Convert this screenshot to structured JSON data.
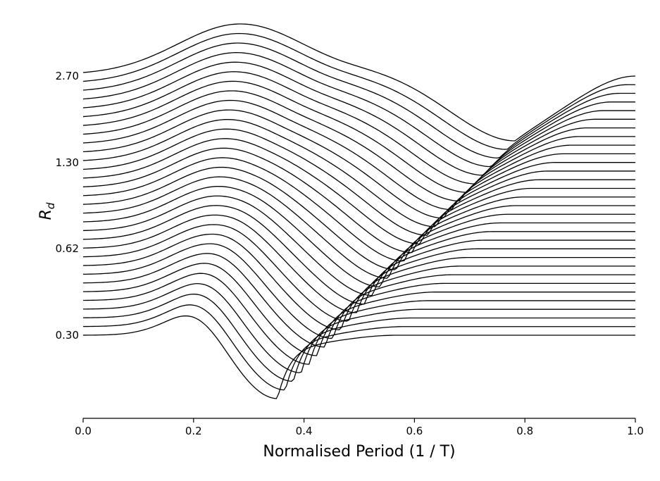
{
  "chart_data": {
    "type": "line",
    "title": "",
    "xlabel": "Normalised Period (1 / T)",
    "ylabel_base": "R",
    "ylabel_sub": "d",
    "xlim": [
      0.0,
      1.0
    ],
    "x_ticks": [
      0.0,
      0.2,
      0.4,
      0.6,
      0.8,
      1.0
    ],
    "x_tick_labels": [
      "0.0",
      "0.2",
      "0.4",
      "0.6",
      "0.8",
      "1.0"
    ],
    "y_ticks": [
      0.3,
      0.62,
      1.3,
      2.7
    ],
    "y_tick_labels": [
      "0.30",
      "0.62",
      "1.30",
      "2.70"
    ],
    "y_scale": "log",
    "grid": false,
    "legend": "none",
    "series_count": 31,
    "series_description": "Family of 31 spectral response curves, R_d values at x=0 from 0.30 (bottom) to 2.70 (top) spaced logarithmically; each curve has a hump near x=0.2-0.3, a dip/cusp that moves from x=0.35 (bottom) to x=0.78 (top), and a plateau or rise towards x=1.0",
    "line_color": "#000000"
  }
}
